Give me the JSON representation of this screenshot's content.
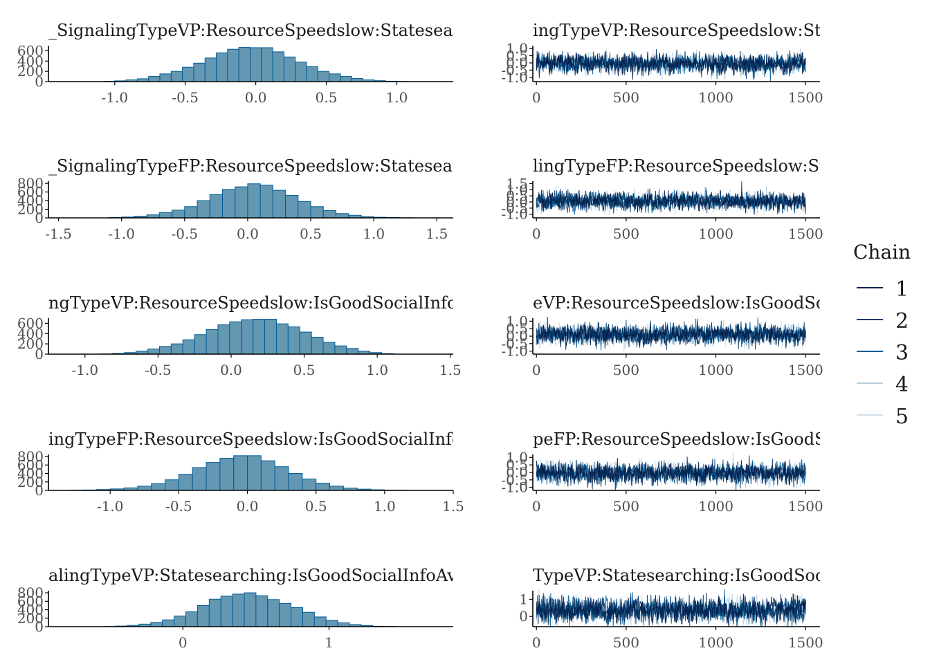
{
  "legend": {
    "title": "Chain",
    "items": [
      {
        "label": "1",
        "color": "#011f4b"
      },
      {
        "label": "2",
        "color": "#03396c"
      },
      {
        "label": "3",
        "color": "#005b96"
      },
      {
        "label": "4",
        "color": "#b3cde0"
      },
      {
        "label": "5",
        "color": "#d1e1ec"
      }
    ]
  },
  "colors": {
    "hist_fill": "#6497b1",
    "hist_edge": "#005b96",
    "axis": "#000000",
    "tick_text": "#4d4d4d"
  },
  "chart_data": [
    {
      "type": "bar",
      "title": "_SignalingTypeVP:ResourceSpeedslow:Statesearchi",
      "xticks": [
        -1.0,
        -0.5,
        0.0,
        0.5,
        1.0
      ],
      "xtick_labels": [
        "-1.0",
        "-0.5",
        "0.0",
        "0.5",
        "1.0"
      ],
      "xlim": [
        -1.47,
        1.4
      ],
      "yticks": [
        0,
        200,
        400,
        600
      ],
      "ytick_labels": [
        "0",
        "200",
        "400",
        "600"
      ],
      "ylim": [
        0,
        700
      ],
      "bin_centers": [
        -1.04,
        -0.96,
        -0.88,
        -0.8,
        -0.72,
        -0.64,
        -0.56,
        -0.48,
        -0.4,
        -0.32,
        -0.24,
        -0.16,
        -0.08,
        0.0,
        0.08,
        0.16,
        0.24,
        0.32,
        0.4,
        0.48,
        0.56,
        0.64,
        0.72,
        0.8,
        0.88,
        0.96,
        1.04
      ],
      "counts": [
        5,
        15,
        35,
        55,
        100,
        150,
        200,
        280,
        360,
        460,
        560,
        630,
        665,
        660,
        660,
        580,
        480,
        380,
        290,
        200,
        150,
        100,
        60,
        35,
        18,
        8,
        3
      ]
    },
    {
      "type": "line",
      "title": "ingTypeVP:ResourceSpeedslow:States",
      "xticks": [
        0,
        500,
        1000,
        1500
      ],
      "xtick_labels": [
        "0",
        "500",
        "1000",
        "1500"
      ],
      "xlim": [
        -20,
        1580
      ],
      "yticks": [
        -1.0,
        -0.5,
        0.0,
        0.5,
        1.0
      ],
      "ytick_labels": [
        "-1.0",
        "-0.5",
        "0.0",
        "0.5",
        "1.0"
      ],
      "ylim": [
        -1.3,
        1.2
      ],
      "iterations": 1500,
      "chains": 5,
      "center": -0.05,
      "spread": 0.33
    },
    {
      "type": "bar",
      "title": "_SignalingTypeFP:ResourceSpeedslow:Statesearchi",
      "xticks": [
        -1.5,
        -1.0,
        -0.5,
        0.0,
        0.5,
        1.0,
        1.5
      ],
      "xtick_labels": [
        "-1.5",
        "-1.0",
        "-0.5",
        "0.0",
        "0.5",
        "1.0",
        "1.5"
      ],
      "xlim": [
        -1.58,
        1.63
      ],
      "yticks": [
        0,
        200,
        400,
        600,
        800
      ],
      "ytick_labels": [
        "0",
        "200",
        "400",
        "600",
        "800"
      ],
      "ylim": [
        0,
        850
      ],
      "bin_centers": [
        -1.05,
        -0.95,
        -0.85,
        -0.75,
        -0.65,
        -0.55,
        -0.45,
        -0.35,
        -0.25,
        -0.15,
        -0.05,
        0.05,
        0.15,
        0.25,
        0.35,
        0.45,
        0.55,
        0.65,
        0.75,
        0.85,
        0.95,
        1.05,
        1.15,
        1.25
      ],
      "counts": [
        10,
        20,
        40,
        70,
        120,
        180,
        260,
        400,
        540,
        660,
        720,
        790,
        760,
        640,
        520,
        380,
        260,
        170,
        100,
        60,
        30,
        15,
        8,
        3
      ]
    },
    {
      "type": "line",
      "title": "lingTypeFP:ResourceSpeedslow:States",
      "xticks": [
        0,
        500,
        1000,
        1500
      ],
      "xtick_labels": [
        "0",
        "500",
        "1000",
        "1500"
      ],
      "xlim": [
        -20,
        1580
      ],
      "yticks": [
        -1.0,
        -0.5,
        0.0,
        0.5,
        1.0,
        1.5
      ],
      "ytick_labels": [
        "-1.0",
        "-0.5",
        "0.0",
        "0.5",
        "1.0",
        "1.5"
      ],
      "ylim": [
        -1.3,
        1.7
      ],
      "iterations": 1500,
      "chains": 5,
      "center": 0.05,
      "spread": 0.36
    },
    {
      "type": "bar",
      "title": "ngTypeVP:ResourceSpeedslow:IsGoodSocialInfoA",
      "xticks": [
        -1.0,
        -0.5,
        0.0,
        0.5,
        1.0,
        1.5
      ],
      "xtick_labels": [
        "-1.0",
        "-0.5",
        "0.0",
        "0.5",
        "1.0",
        "1.5"
      ],
      "xlim": [
        -1.25,
        1.52
      ],
      "yticks": [
        0,
        200,
        400,
        600
      ],
      "ytick_labels": [
        "0",
        "200",
        "400",
        "600"
      ],
      "ylim": [
        0,
        700
      ],
      "bin_centers": [
        -0.85,
        -0.77,
        -0.69,
        -0.61,
        -0.53,
        -0.45,
        -0.37,
        -0.29,
        -0.21,
        -0.13,
        -0.05,
        0.03,
        0.11,
        0.19,
        0.27,
        0.35,
        0.43,
        0.51,
        0.59,
        0.67,
        0.75,
        0.83,
        0.91,
        0.99,
        1.07
      ],
      "counts": [
        5,
        15,
        30,
        60,
        100,
        150,
        200,
        280,
        380,
        480,
        570,
        630,
        670,
        680,
        680,
        590,
        530,
        430,
        330,
        230,
        160,
        110,
        60,
        30,
        10
      ]
    },
    {
      "type": "line",
      "title": "eVP:ResourceSpeedslow:IsGoodSocia",
      "xticks": [
        0,
        500,
        1000,
        1500
      ],
      "xtick_labels": [
        "0",
        "500",
        "1000",
        "1500"
      ],
      "xlim": [
        -20,
        1580
      ],
      "yticks": [
        -1.0,
        -0.5,
        0.0,
        0.5,
        1.0
      ],
      "ytick_labels": [
        "-1.0",
        "-0.5",
        "0.0",
        "0.5",
        "1.0"
      ],
      "ylim": [
        -1.2,
        1.2
      ],
      "iterations": 1500,
      "chains": 5,
      "center": 0.1,
      "spread": 0.33
    },
    {
      "type": "bar",
      "title": "ingTypeFP:ResourceSpeedslow:IsGoodSocialInfoA",
      "xticks": [
        -1.0,
        -0.5,
        0.0,
        0.5,
        1.0,
        1.5
      ],
      "xtick_labels": [
        "-1.0",
        "-0.5",
        "0.0",
        "0.5",
        "1.0",
        "1.5"
      ],
      "xlim": [
        -1.45,
        1.5
      ],
      "yticks": [
        0,
        200,
        400,
        600,
        800
      ],
      "ytick_labels": [
        "0",
        "200",
        "400",
        "600",
        "800"
      ],
      "ylim": [
        0,
        850
      ],
      "bin_centers": [
        -1.25,
        -1.15,
        -1.05,
        -0.95,
        -0.85,
        -0.75,
        -0.65,
        -0.55,
        -0.45,
        -0.35,
        -0.25,
        -0.15,
        -0.05,
        0.05,
        0.15,
        0.25,
        0.35,
        0.45,
        0.55,
        0.65,
        0.75,
        0.85,
        0.95,
        1.05,
        1.15
      ],
      "counts": [
        5,
        10,
        20,
        35,
        60,
        100,
        160,
        250,
        380,
        540,
        660,
        760,
        820,
        820,
        700,
        560,
        400,
        270,
        170,
        100,
        55,
        30,
        15,
        8,
        3
      ]
    },
    {
      "type": "line",
      "title": "peFP:ResourceSpeedslow:IsGoodSocial",
      "xticks": [
        0,
        500,
        1000,
        1500
      ],
      "xtick_labels": [
        "0",
        "500",
        "1000",
        "1500"
      ],
      "xlim": [
        -20,
        1580
      ],
      "yticks": [
        -1.0,
        -0.5,
        0.0,
        0.5,
        1.0
      ],
      "ytick_labels": [
        "-1.0",
        "-0.5",
        "0.0",
        "0.5",
        "1.0"
      ],
      "ylim": [
        -1.2,
        1.2
      ],
      "iterations": 1500,
      "chains": 5,
      "center": -0.05,
      "spread": 0.34
    },
    {
      "type": "bar",
      "title": "alingTypeVP:Statesearching:IsGoodSocialInfoAvai",
      "xticks": [
        0,
        1
      ],
      "xtick_labels": [
        "0",
        "1"
      ],
      "xlim": [
        -0.92,
        1.85
      ],
      "yticks": [
        0,
        200,
        400,
        600,
        800
      ],
      "ytick_labels": [
        "0",
        "200",
        "400",
        "600",
        "800"
      ],
      "ylim": [
        0,
        850
      ],
      "bin_centers": [
        -0.5,
        -0.42,
        -0.34,
        -0.26,
        -0.18,
        -0.1,
        -0.02,
        0.06,
        0.14,
        0.22,
        0.3,
        0.38,
        0.46,
        0.54,
        0.62,
        0.7,
        0.78,
        0.86,
        0.94,
        1.02,
        1.1,
        1.18,
        1.26,
        1.34,
        1.42
      ],
      "counts": [
        5,
        15,
        30,
        60,
        100,
        160,
        250,
        350,
        500,
        650,
        720,
        770,
        800,
        730,
        640,
        550,
        450,
        340,
        230,
        150,
        90,
        50,
        25,
        10,
        5
      ]
    },
    {
      "type": "line",
      "title": "TypeVP:Statesearching:IsGoodSocialIn",
      "xticks": [
        0,
        500,
        1000,
        1500
      ],
      "xtick_labels": [
        "0",
        "500",
        "1000",
        "1500"
      ],
      "xlim": [
        -20,
        1580
      ],
      "yticks": [
        0,
        1
      ],
      "ytick_labels": [
        "0",
        "1"
      ],
      "ylim": [
        -0.6,
        1.5
      ],
      "iterations": 1500,
      "chains": 5,
      "center": 0.35,
      "spread": 0.36
    }
  ]
}
